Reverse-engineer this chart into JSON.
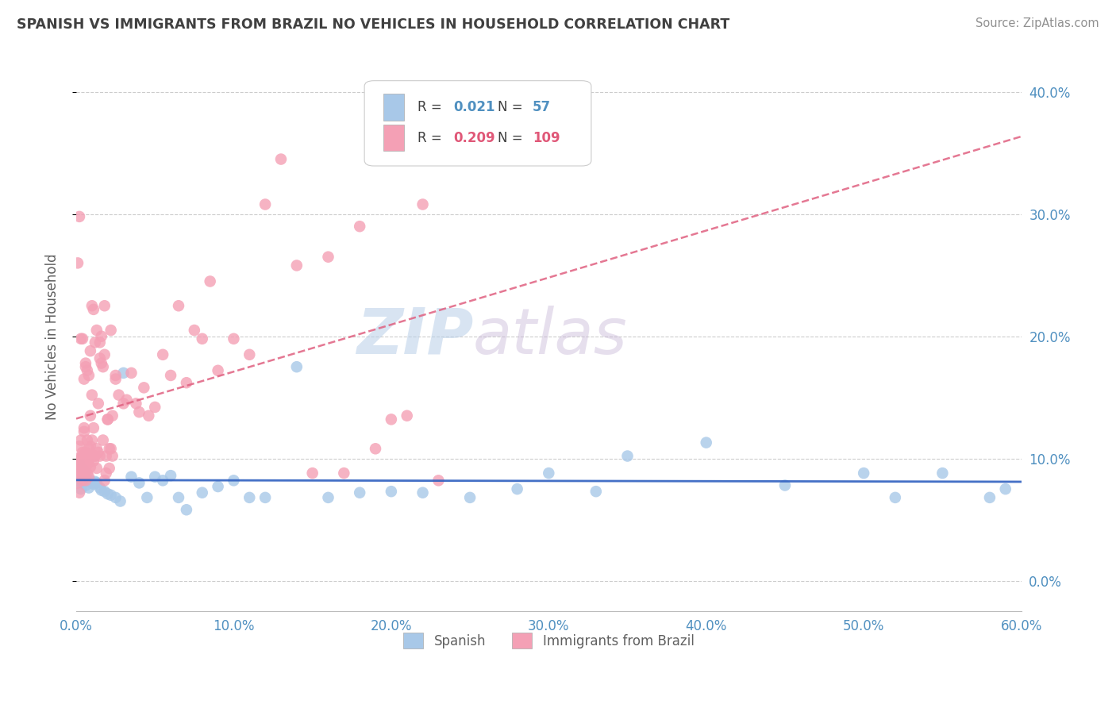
{
  "title": "SPANISH VS IMMIGRANTS FROM BRAZIL NO VEHICLES IN HOUSEHOLD CORRELATION CHART",
  "source": "Source: ZipAtlas.com",
  "ylabel": "No Vehicles in Household",
  "xlim": [
    0.0,
    0.6
  ],
  "ylim": [
    -0.025,
    0.425
  ],
  "xticks": [
    0.0,
    0.1,
    0.2,
    0.3,
    0.4,
    0.5,
    0.6
  ],
  "yticks_right": [
    0.0,
    0.1,
    0.2,
    0.3,
    0.4
  ],
  "legend1_r": "0.021",
  "legend1_n": "57",
  "legend2_r": "0.209",
  "legend2_n": "109",
  "blue_color": "#a8c8e8",
  "pink_color": "#f4a0b5",
  "blue_line_color": "#3060c0",
  "pink_line_color": "#e06080",
  "watermark_zip": "ZIP",
  "watermark_atlas": "atlas",
  "title_color": "#404040",
  "source_color": "#909090",
  "axis_label_color": "#606060",
  "tick_color": "#5090c0",
  "blue_scatter_x": [
    0.001,
    0.001,
    0.002,
    0.002,
    0.003,
    0.003,
    0.004,
    0.004,
    0.005,
    0.005,
    0.006,
    0.006,
    0.007,
    0.008,
    0.009,
    0.01,
    0.011,
    0.012,
    0.013,
    0.015,
    0.016,
    0.018,
    0.02,
    0.022,
    0.025,
    0.028,
    0.03,
    0.035,
    0.04,
    0.045,
    0.05,
    0.055,
    0.06,
    0.065,
    0.07,
    0.08,
    0.09,
    0.1,
    0.11,
    0.12,
    0.14,
    0.16,
    0.18,
    0.2,
    0.22,
    0.25,
    0.28,
    0.3,
    0.33,
    0.35,
    0.4,
    0.45,
    0.5,
    0.52,
    0.55,
    0.58,
    0.59
  ],
  "blue_scatter_y": [
    0.082,
    0.09,
    0.085,
    0.095,
    0.075,
    0.092,
    0.08,
    0.088,
    0.082,
    0.09,
    0.078,
    0.088,
    0.083,
    0.076,
    0.082,
    0.08,
    0.079,
    0.081,
    0.08,
    0.076,
    0.074,
    0.073,
    0.071,
    0.07,
    0.068,
    0.065,
    0.17,
    0.085,
    0.08,
    0.068,
    0.085,
    0.082,
    0.086,
    0.068,
    0.058,
    0.072,
    0.077,
    0.082,
    0.068,
    0.068,
    0.175,
    0.068,
    0.072,
    0.073,
    0.072,
    0.068,
    0.075,
    0.088,
    0.073,
    0.102,
    0.113,
    0.078,
    0.088,
    0.068,
    0.088,
    0.068,
    0.075
  ],
  "pink_scatter_x": [
    0.001,
    0.001,
    0.001,
    0.002,
    0.002,
    0.002,
    0.003,
    0.003,
    0.003,
    0.004,
    0.004,
    0.004,
    0.005,
    0.005,
    0.005,
    0.006,
    0.006,
    0.006,
    0.007,
    0.007,
    0.007,
    0.008,
    0.008,
    0.008,
    0.009,
    0.009,
    0.009,
    0.01,
    0.01,
    0.01,
    0.011,
    0.011,
    0.012,
    0.012,
    0.013,
    0.013,
    0.014,
    0.015,
    0.015,
    0.016,
    0.017,
    0.018,
    0.018,
    0.019,
    0.02,
    0.021,
    0.022,
    0.023,
    0.025,
    0.027,
    0.03,
    0.032,
    0.035,
    0.038,
    0.04,
    0.043,
    0.046,
    0.05,
    0.055,
    0.06,
    0.065,
    0.07,
    0.075,
    0.08,
    0.085,
    0.09,
    0.1,
    0.11,
    0.12,
    0.13,
    0.14,
    0.15,
    0.16,
    0.17,
    0.18,
    0.19,
    0.2,
    0.21,
    0.22,
    0.23,
    0.001,
    0.002,
    0.002,
    0.003,
    0.003,
    0.004,
    0.004,
    0.005,
    0.005,
    0.006,
    0.006,
    0.007,
    0.008,
    0.009,
    0.01,
    0.011,
    0.012,
    0.013,
    0.014,
    0.015,
    0.016,
    0.017,
    0.018,
    0.019,
    0.02,
    0.021,
    0.022,
    0.023,
    0.025
  ],
  "pink_scatter_y": [
    0.08,
    0.09,
    0.1,
    0.072,
    0.085,
    0.11,
    0.088,
    0.095,
    0.115,
    0.082,
    0.092,
    0.105,
    0.088,
    0.1,
    0.125,
    0.092,
    0.105,
    0.082,
    0.088,
    0.095,
    0.115,
    0.098,
    0.108,
    0.085,
    0.093,
    0.11,
    0.135,
    0.102,
    0.115,
    0.152,
    0.098,
    0.125,
    0.102,
    0.195,
    0.092,
    0.205,
    0.145,
    0.102,
    0.195,
    0.2,
    0.115,
    0.185,
    0.225,
    0.088,
    0.132,
    0.092,
    0.205,
    0.102,
    0.168,
    0.152,
    0.145,
    0.148,
    0.17,
    0.145,
    0.138,
    0.158,
    0.135,
    0.142,
    0.185,
    0.168,
    0.225,
    0.162,
    0.205,
    0.198,
    0.245,
    0.172,
    0.198,
    0.185,
    0.308,
    0.345,
    0.258,
    0.088,
    0.265,
    0.088,
    0.29,
    0.108,
    0.132,
    0.135,
    0.308,
    0.082,
    0.26,
    0.298,
    0.095,
    0.1,
    0.198,
    0.198,
    0.102,
    0.165,
    0.122,
    0.178,
    0.175,
    0.172,
    0.168,
    0.188,
    0.225,
    0.222,
    0.102,
    0.108,
    0.105,
    0.182,
    0.178,
    0.175,
    0.082,
    0.102,
    0.132,
    0.108,
    0.108,
    0.135,
    0.165
  ]
}
